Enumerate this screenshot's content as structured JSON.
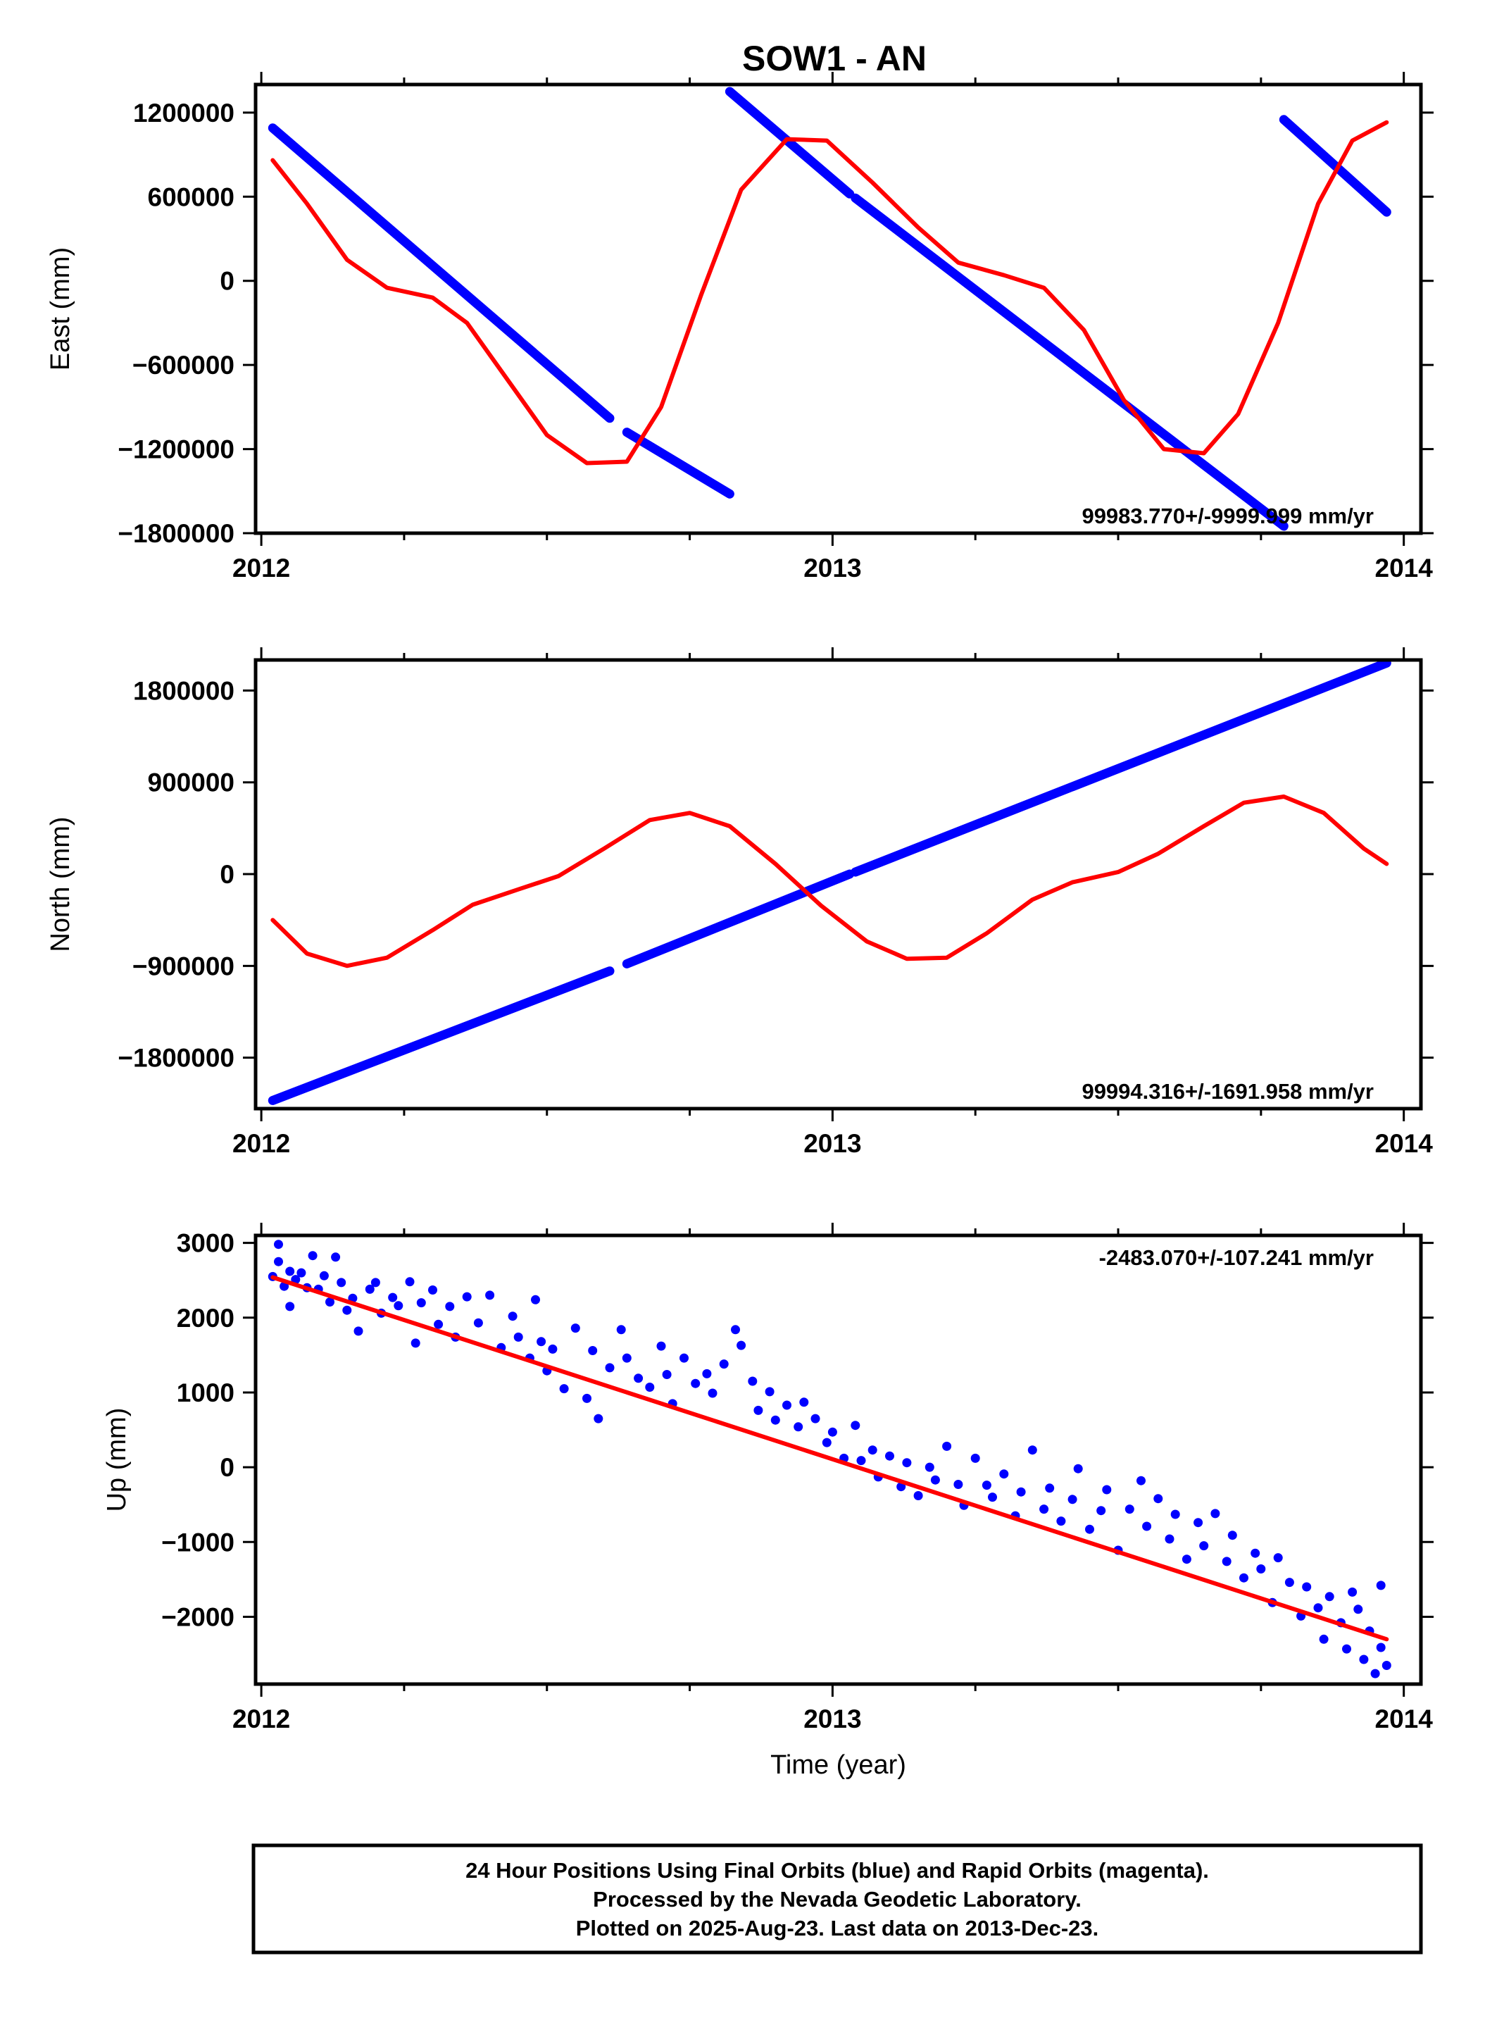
{
  "title": "SOW1 - AN",
  "colors": {
    "final": "#0000ff",
    "rapid": "#ff0000",
    "frame": "#000000"
  },
  "footer": {
    "line1": "24 Hour Positions Using Final Orbits (blue) and Rapid Orbits (magenta).",
    "line2": "Processed by the Nevada Geodetic Laboratory.",
    "line3": "Plotted on 2025-Aug-23. Last data on 2013-Dec-23."
  },
  "chart_data": [
    {
      "type": "scatter",
      "ylabel": "East (mm)",
      "xlabel": "",
      "xlim": [
        2011.99,
        2014.03
      ],
      "ylim": [
        -1800000,
        1400000
      ],
      "xticks": [
        2012,
        2013,
        2014
      ],
      "yticks": [
        -1800000,
        -1200000,
        -600000,
        0,
        600000,
        1200000
      ],
      "rate_label": "99983.770+/-9999.999 mm/yr",
      "series": [
        {
          "kind": "final",
          "style": "thick-line",
          "segments": [
            [
              [
                2012.02,
                1090000
              ],
              [
                2012.61,
                -980000
              ]
            ],
            [
              [
                2012.64,
                -1080000
              ],
              [
                2012.82,
                -1520000
              ]
            ],
            [
              [
                2012.82,
                1350000
              ],
              [
                2013.03,
                620000
              ]
            ],
            [
              [
                2013.04,
                590000
              ],
              [
                2013.79,
                -1750000
              ]
            ],
            [
              [
                2013.79,
                1150000
              ],
              [
                2013.97,
                490000
              ]
            ]
          ]
        },
        {
          "kind": "rapid",
          "style": "line",
          "points": [
            [
              2012.02,
              860000
            ],
            [
              2012.08,
              550000
            ],
            [
              2012.15,
              150000
            ],
            [
              2012.22,
              -50000
            ],
            [
              2012.3,
              -120000
            ],
            [
              2012.36,
              -300000
            ],
            [
              2012.43,
              -700000
            ],
            [
              2012.5,
              -1100000
            ],
            [
              2012.57,
              -1300000
            ],
            [
              2012.64,
              -1290000
            ],
            [
              2012.7,
              -900000
            ],
            [
              2012.77,
              -100000
            ],
            [
              2012.84,
              650000
            ],
            [
              2012.92,
              1010000
            ],
            [
              2012.99,
              1000000
            ],
            [
              2013.07,
              700000
            ],
            [
              2013.15,
              380000
            ],
            [
              2013.22,
              130000
            ],
            [
              2013.3,
              40000
            ],
            [
              2013.37,
              -50000
            ],
            [
              2013.44,
              -350000
            ],
            [
              2013.51,
              -850000
            ],
            [
              2013.58,
              -1200000
            ],
            [
              2013.65,
              -1230000
            ],
            [
              2013.71,
              -950000
            ],
            [
              2013.78,
              -300000
            ],
            [
              2013.85,
              550000
            ],
            [
              2013.91,
              1000000
            ],
            [
              2013.97,
              1130000
            ]
          ]
        }
      ]
    },
    {
      "type": "scatter",
      "ylabel": "North (mm)",
      "xlabel": "",
      "xlim": [
        2011.99,
        2014.03
      ],
      "ylim": [
        -2300000,
        2100000
      ],
      "xticks": [
        2012,
        2013,
        2014
      ],
      "yticks": [
        -1800000,
        -900000,
        0,
        900000,
        1800000
      ],
      "rate_label": "99994.316+/-1691.958 mm/yr",
      "series": [
        {
          "kind": "final",
          "style": "thick-line",
          "segments": [
            [
              [
                2012.02,
                -2220000
              ],
              [
                2012.61,
                -950000
              ]
            ],
            [
              [
                2012.64,
                -880000
              ],
              [
                2013.03,
                0
              ]
            ],
            [
              [
                2013.04,
                20000
              ],
              [
                2013.97,
                2070000
              ]
            ]
          ]
        },
        {
          "kind": "rapid",
          "style": "line",
          "points": [
            [
              2012.02,
              -450000
            ],
            [
              2012.08,
              -780000
            ],
            [
              2012.15,
              -900000
            ],
            [
              2012.22,
              -820000
            ],
            [
              2012.3,
              -550000
            ],
            [
              2012.37,
              -300000
            ],
            [
              2012.45,
              -150000
            ],
            [
              2012.52,
              -20000
            ],
            [
              2012.6,
              250000
            ],
            [
              2012.68,
              530000
            ],
            [
              2012.75,
              600000
            ],
            [
              2012.82,
              470000
            ],
            [
              2012.9,
              100000
            ],
            [
              2012.98,
              -310000
            ],
            [
              2013.06,
              -660000
            ],
            [
              2013.13,
              -830000
            ],
            [
              2013.2,
              -820000
            ],
            [
              2013.27,
              -580000
            ],
            [
              2013.35,
              -250000
            ],
            [
              2013.42,
              -80000
            ],
            [
              2013.5,
              20000
            ],
            [
              2013.57,
              200000
            ],
            [
              2013.65,
              470000
            ],
            [
              2013.72,
              700000
            ],
            [
              2013.79,
              760000
            ],
            [
              2013.86,
              600000
            ],
            [
              2013.93,
              250000
            ],
            [
              2013.97,
              100000
            ]
          ]
        }
      ]
    },
    {
      "type": "scatter",
      "ylabel": "Up (mm)",
      "xlabel": "Time (year)",
      "xlim": [
        2011.99,
        2014.03
      ],
      "ylim": [
        -2900,
        3100
      ],
      "xticks": [
        2012,
        2013,
        2014
      ],
      "yticks": [
        -2000,
        -1000,
        0,
        1000,
        2000,
        3000
      ],
      "rate_label": "-2483.070+/-107.241 mm/yr",
      "series": [
        {
          "kind": "rapid",
          "style": "line",
          "points": [
            [
              2012.02,
              2540
            ],
            [
              2013.97,
              -2300
            ]
          ]
        },
        {
          "kind": "final",
          "style": "dots",
          "points": [
            [
              2012.02,
              2550
            ],
            [
              2012.03,
              2750
            ],
            [
              2012.03,
              2980
            ],
            [
              2012.04,
              2420
            ],
            [
              2012.05,
              2620
            ],
            [
              2012.05,
              2150
            ],
            [
              2012.06,
              2510
            ],
            [
              2012.07,
              2600
            ],
            [
              2012.08,
              2400
            ],
            [
              2012.09,
              2830
            ],
            [
              2012.1,
              2380
            ],
            [
              2012.11,
              2560
            ],
            [
              2012.12,
              2210
            ],
            [
              2012.13,
              2810
            ],
            [
              2012.14,
              2470
            ],
            [
              2012.15,
              2100
            ],
            [
              2012.16,
              2260
            ],
            [
              2012.17,
              1820
            ],
            [
              2012.19,
              2380
            ],
            [
              2012.2,
              2470
            ],
            [
              2012.21,
              2060
            ],
            [
              2012.23,
              2270
            ],
            [
              2012.24,
              2160
            ],
            [
              2012.26,
              2480
            ],
            [
              2012.27,
              1660
            ],
            [
              2012.28,
              2200
            ],
            [
              2012.3,
              2370
            ],
            [
              2012.31,
              1910
            ],
            [
              2012.33,
              2150
            ],
            [
              2012.34,
              1740
            ],
            [
              2012.36,
              2280
            ],
            [
              2012.38,
              1930
            ],
            [
              2012.4,
              2300
            ],
            [
              2012.42,
              1600
            ],
            [
              2012.44,
              2020
            ],
            [
              2012.45,
              1740
            ],
            [
              2012.47,
              1460
            ],
            [
              2012.48,
              2240
            ],
            [
              2012.49,
              1680
            ],
            [
              2012.5,
              1290
            ],
            [
              2012.51,
              1580
            ],
            [
              2012.53,
              1050
            ],
            [
              2012.55,
              1860
            ],
            [
              2012.57,
              920
            ],
            [
              2012.58,
              1560
            ],
            [
              2012.59,
              650
            ],
            [
              2012.61,
              1330
            ],
            [
              2012.63,
              1840
            ],
            [
              2012.64,
              1460
            ],
            [
              2012.66,
              1190
            ],
            [
              2012.68,
              1070
            ],
            [
              2012.7,
              1620
            ],
            [
              2012.71,
              1240
            ],
            [
              2012.72,
              850
            ],
            [
              2012.74,
              1460
            ],
            [
              2012.76,
              1120
            ],
            [
              2012.78,
              1250
            ],
            [
              2012.79,
              990
            ],
            [
              2012.81,
              1380
            ],
            [
              2012.83,
              1840
            ],
            [
              2012.84,
              1630
            ],
            [
              2012.86,
              1150
            ],
            [
              2012.87,
              760
            ],
            [
              2012.89,
              1010
            ],
            [
              2012.9,
              630
            ],
            [
              2012.92,
              830
            ],
            [
              2012.94,
              540
            ],
            [
              2012.95,
              870
            ],
            [
              2012.97,
              650
            ],
            [
              2012.99,
              330
            ],
            [
              2013.0,
              470
            ],
            [
              2013.02,
              120
            ],
            [
              2013.04,
              560
            ],
            [
              2013.05,
              90
            ],
            [
              2013.07,
              230
            ],
            [
              2013.08,
              -130
            ],
            [
              2013.1,
              150
            ],
            [
              2013.12,
              -260
            ],
            [
              2013.13,
              60
            ],
            [
              2013.15,
              -380
            ],
            [
              2013.17,
              0
            ],
            [
              2013.18,
              -170
            ],
            [
              2013.2,
              280
            ],
            [
              2013.22,
              -230
            ],
            [
              2013.23,
              -510
            ],
            [
              2013.25,
              120
            ],
            [
              2013.27,
              -240
            ],
            [
              2013.28,
              -400
            ],
            [
              2013.3,
              -90
            ],
            [
              2013.32,
              -650
            ],
            [
              2013.33,
              -330
            ],
            [
              2013.35,
              230
            ],
            [
              2013.37,
              -560
            ],
            [
              2013.38,
              -280
            ],
            [
              2013.4,
              -720
            ],
            [
              2013.42,
              -430
            ],
            [
              2013.43,
              -20
            ],
            [
              2013.45,
              -830
            ],
            [
              2013.47,
              -580
            ],
            [
              2013.48,
              -300
            ],
            [
              2013.5,
              -1110
            ],
            [
              2013.52,
              -560
            ],
            [
              2013.54,
              -180
            ],
            [
              2013.55,
              -790
            ],
            [
              2013.57,
              -420
            ],
            [
              2013.59,
              -960
            ],
            [
              2013.6,
              -630
            ],
            [
              2013.62,
              -1230
            ],
            [
              2013.64,
              -740
            ],
            [
              2013.65,
              -1050
            ],
            [
              2013.67,
              -620
            ],
            [
              2013.69,
              -1260
            ],
            [
              2013.7,
              -910
            ],
            [
              2013.72,
              -1480
            ],
            [
              2013.74,
              -1150
            ],
            [
              2013.75,
              -1360
            ],
            [
              2013.77,
              -1810
            ],
            [
              2013.78,
              -1210
            ],
            [
              2013.8,
              -1540
            ],
            [
              2013.82,
              -1990
            ],
            [
              2013.83,
              -1600
            ],
            [
              2013.85,
              -1880
            ],
            [
              2013.86,
              -2300
            ],
            [
              2013.87,
              -1730
            ],
            [
              2013.89,
              -2080
            ],
            [
              2013.9,
              -2430
            ],
            [
              2013.92,
              -1900
            ],
            [
              2013.93,
              -2570
            ],
            [
              2013.94,
              -2190
            ],
            [
              2013.95,
              -2760
            ],
            [
              2013.96,
              -2410
            ],
            [
              2013.97,
              -2650
            ],
            [
              2013.96,
              -1580
            ],
            [
              2013.91,
              -1670
            ]
          ]
        }
      ]
    }
  ]
}
